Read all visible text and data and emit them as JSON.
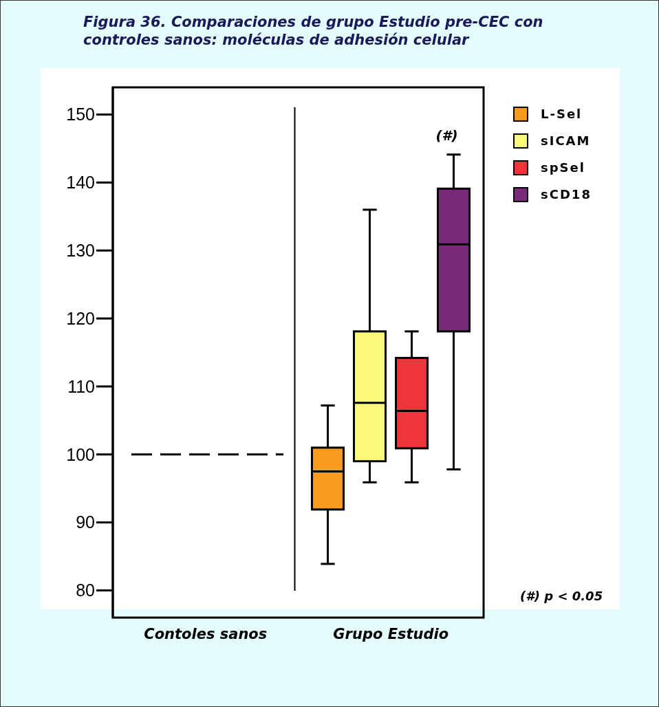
{
  "chart_data": {
    "type": "box",
    "title": "Figura 36. Comparaciones de grupo Estudio pre-CEC con controles sanos: moléculas de adhesión celular",
    "categories": [
      "Contoles sanos",
      "Grupo Estudio"
    ],
    "series": [
      {
        "name": "L-Sel",
        "color": "#f79a1e",
        "boxes": [
          null,
          {
            "low": 83.9,
            "q1": 91.9,
            "median": 97.5,
            "q3": 101.0,
            "high": 107.2
          }
        ]
      },
      {
        "name": "sICAM",
        "color": "#fafa78",
        "boxes": [
          null,
          {
            "low": 95.9,
            "q1": 99.0,
            "median": 107.6,
            "q3": 118.1,
            "high": 136.0
          }
        ]
      },
      {
        "name": "spSel",
        "color": "#f0353a",
        "boxes": [
          null,
          {
            "low": 95.9,
            "q1": 100.9,
            "median": 106.4,
            "q3": 114.2,
            "high": 118.1
          }
        ]
      },
      {
        "name": "sCD18",
        "color": "#7b2a7b",
        "boxes": [
          null,
          {
            "low": 97.8,
            "q1": 118.1,
            "median": 130.9,
            "q3": 139.1,
            "high": 144.1
          }
        ]
      }
    ],
    "ylim": [
      76,
      154
    ],
    "yticks": [
      80,
      90,
      100,
      110,
      120,
      130,
      140,
      150
    ],
    "ref_lines": [
      {
        "axis": "y",
        "value": 100,
        "line_style": "dashed"
      }
    ],
    "annotations": [
      "(#)",
      "(#) p < 0.05"
    ],
    "legend": "top right"
  }
}
